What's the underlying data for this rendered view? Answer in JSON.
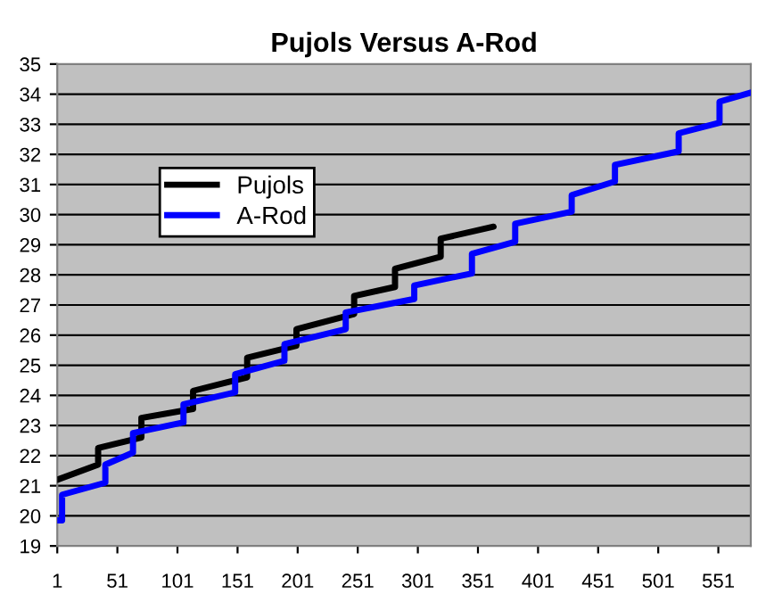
{
  "chart_data": {
    "type": "line",
    "title": "Pujols Versus A-Rod",
    "xlim": [
      1,
      578
    ],
    "xticks": [
      1,
      51,
      101,
      151,
      201,
      251,
      301,
      351,
      401,
      451,
      501,
      551
    ],
    "ylim": [
      19,
      35
    ],
    "yticks": [
      19,
      20,
      21,
      22,
      23,
      24,
      25,
      26,
      27,
      28,
      29,
      30,
      31,
      32,
      33,
      34,
      35
    ],
    "grid": "y",
    "legend": "top left",
    "marker": "none",
    "line_style": "solid",
    "series": [
      {
        "name": "Pujols",
        "color": "#000000",
        "x": [
          1,
          35,
          35,
          71,
          71,
          114,
          114,
          159,
          159,
          200,
          200,
          248,
          248,
          282,
          282,
          320,
          320,
          364
        ],
        "values": [
          21.2,
          21.7,
          22.25,
          22.6,
          23.25,
          23.55,
          24.15,
          24.6,
          25.25,
          25.65,
          26.2,
          26.7,
          27.3,
          27.6,
          28.2,
          28.6,
          29.2,
          29.6
        ]
      },
      {
        "name": "A-Rod",
        "color": "#0000ff",
        "x": [
          1,
          5,
          5,
          41,
          41,
          64,
          64,
          106,
          106,
          149,
          149,
          190,
          190,
          241,
          241,
          298,
          298,
          346,
          346,
          382,
          382,
          429,
          429,
          465,
          465,
          518,
          518,
          552,
          552,
          578
        ],
        "values": [
          19.85,
          19.85,
          20.7,
          21.1,
          21.7,
          22.1,
          22.75,
          23.1,
          23.7,
          24.1,
          24.7,
          25.15,
          25.7,
          26.2,
          26.75,
          27.2,
          27.65,
          28.05,
          28.7,
          29.1,
          29.7,
          30.1,
          30.65,
          31.1,
          31.65,
          32.1,
          32.7,
          33.05,
          33.75,
          34.05
        ]
      }
    ]
  }
}
